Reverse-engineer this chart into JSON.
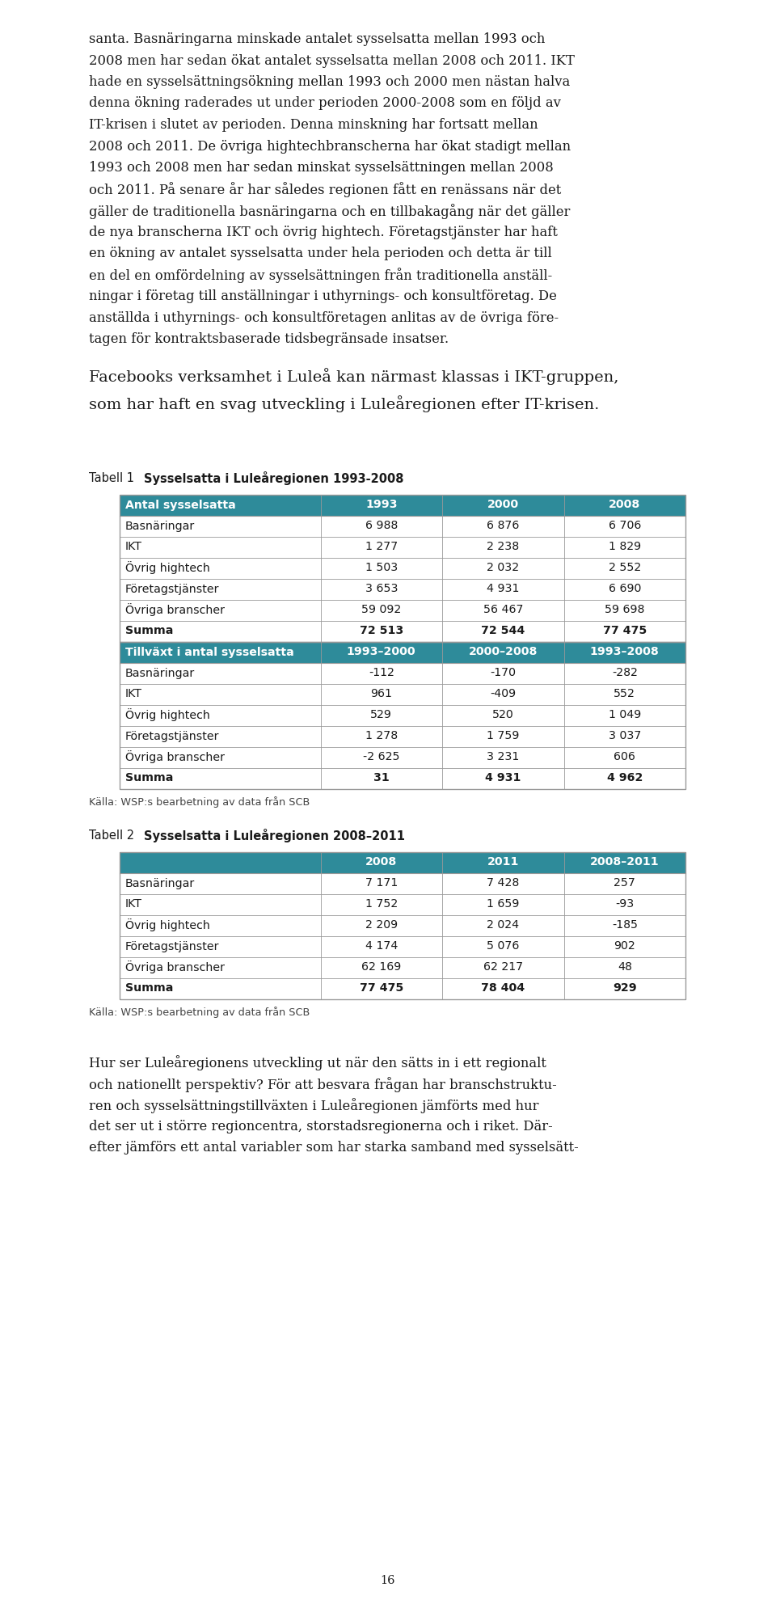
{
  "page_bg": "#ffffff",
  "teal_header": "#2e8b9a",
  "teal_header_text": "#ffffff",
  "border_color": "#999999",
  "intro_lines": [
    "santa. Basnäringarna minskade antalet sysselsatta mellan 1993 och",
    "2008 men har sedan ökat antalet sysselsatta mellan 2008 och 2011. IKT",
    "hade en sysselsättningsökning mellan 1993 och 2000 men nästan halva",
    "denna ökning raderades ut under perioden 2000-2008 som en följd av",
    "IT-krisen i slutet av perioden. Denna minskning har fortsatt mellan",
    "2008 och 2011. De övriga hightechbranscherna har ökat stadigt mellan",
    "1993 och 2008 men har sedan minskat sysselsättningen mellan 2008",
    "och 2011. På senare år har således regionen fått en renässans när det",
    "gäller de traditionella basnäringarna och en tillbakagång när det gäller",
    "de nya branscherna IKT och övrig hightech. Företagstjänster har haft",
    "en ökning av antalet sysselsatta under hela perioden och detta är till",
    "en del en omfördelning av sysselsättningen från traditionella anställ-",
    "ningar i företag till anställningar i uthyrnings- och konsultföretag. De",
    "anställda i uthyrnings- och konsultföretagen anlitas av de övriga före-",
    "tagen för kontraktsbaserade tidsbegränsade insatser."
  ],
  "facebook_lines": [
    "Facebooks verksamhet i Luleå kan närmast klassas i IKT-gruppen,",
    "som har haft en svag utveckling i Luleåregionen efter IT-krisen."
  ],
  "tabell1_label": "Tabell 1",
  "tabell1_title": "Sysselsatta i Luleåregionen 1993-2008",
  "t1_header1": [
    "Antal sysselsatta",
    "1993",
    "2000",
    "2008"
  ],
  "t1_rows1": [
    [
      "Basnäringar",
      "6 988",
      "6 876",
      "6 706"
    ],
    [
      "IKT",
      "1 277",
      "2 238",
      "1 829"
    ],
    [
      "Övrig hightech",
      "1 503",
      "2 032",
      "2 552"
    ],
    [
      "Företagstjänster",
      "3 653",
      "4 931",
      "6 690"
    ],
    [
      "Övriga branscher",
      "59 092",
      "56 467",
      "59 698"
    ],
    [
      "Summa",
      "72 513",
      "72 544",
      "77 475"
    ]
  ],
  "t1_bold_rows1": [
    5
  ],
  "t1_header2": [
    "Tillväxt i antal sysselsatta",
    "1993–2000",
    "2000–2008",
    "1993–2008"
  ],
  "t1_rows2": [
    [
      "Basnäringar",
      "-112",
      "-170",
      "-282"
    ],
    [
      "IKT",
      "961",
      "-409",
      "552"
    ],
    [
      "Övrig hightech",
      "529",
      "520",
      "1 049"
    ],
    [
      "Företagstjänster",
      "1 278",
      "1 759",
      "3 037"
    ],
    [
      "Övriga branscher",
      "-2 625",
      "3 231",
      "606"
    ],
    [
      "Summa",
      "31",
      "4 931",
      "4 962"
    ]
  ],
  "t1_bold_rows2": [
    5
  ],
  "t1_source": "Källa: WSP:s bearbetning av data från SCB",
  "tabell2_label": "Tabell 2",
  "tabell2_title": "Sysselsatta i Luleåregionen 2008–2011",
  "t2_header": [
    "",
    "2008",
    "2011",
    "2008–2011"
  ],
  "t2_rows": [
    [
      "Basnäringar",
      "7 171",
      "7 428",
      "257"
    ],
    [
      "IKT",
      "1 752",
      "1 659",
      "-93"
    ],
    [
      "Övrig hightech",
      "2 209",
      "2 024",
      "-185"
    ],
    [
      "Företagstjänster",
      "4 174",
      "5 076",
      "902"
    ],
    [
      "Övriga branscher",
      "62 169",
      "62 217",
      "48"
    ],
    [
      "Summa",
      "77 475",
      "78 404",
      "929"
    ]
  ],
  "t2_bold_rows": [
    5
  ],
  "t2_source": "Källa: WSP:s bearbetning av data från SCB",
  "outro_lines": [
    "Hur ser Luleåregionens utveckling ut när den sätts in i ett regionalt",
    "och nationellt perspektiv? För att besvara frågan har branschstruktu-",
    "ren och sysselsättningstillväxten i Luleåregionen jämförts med hur",
    "det ser ut i större regioncentra, storstadsregionerna och i riket. Där-",
    "efter jämförs ett antal variabler som har starka samband med sysselsätt-"
  ],
  "page_number": "16"
}
